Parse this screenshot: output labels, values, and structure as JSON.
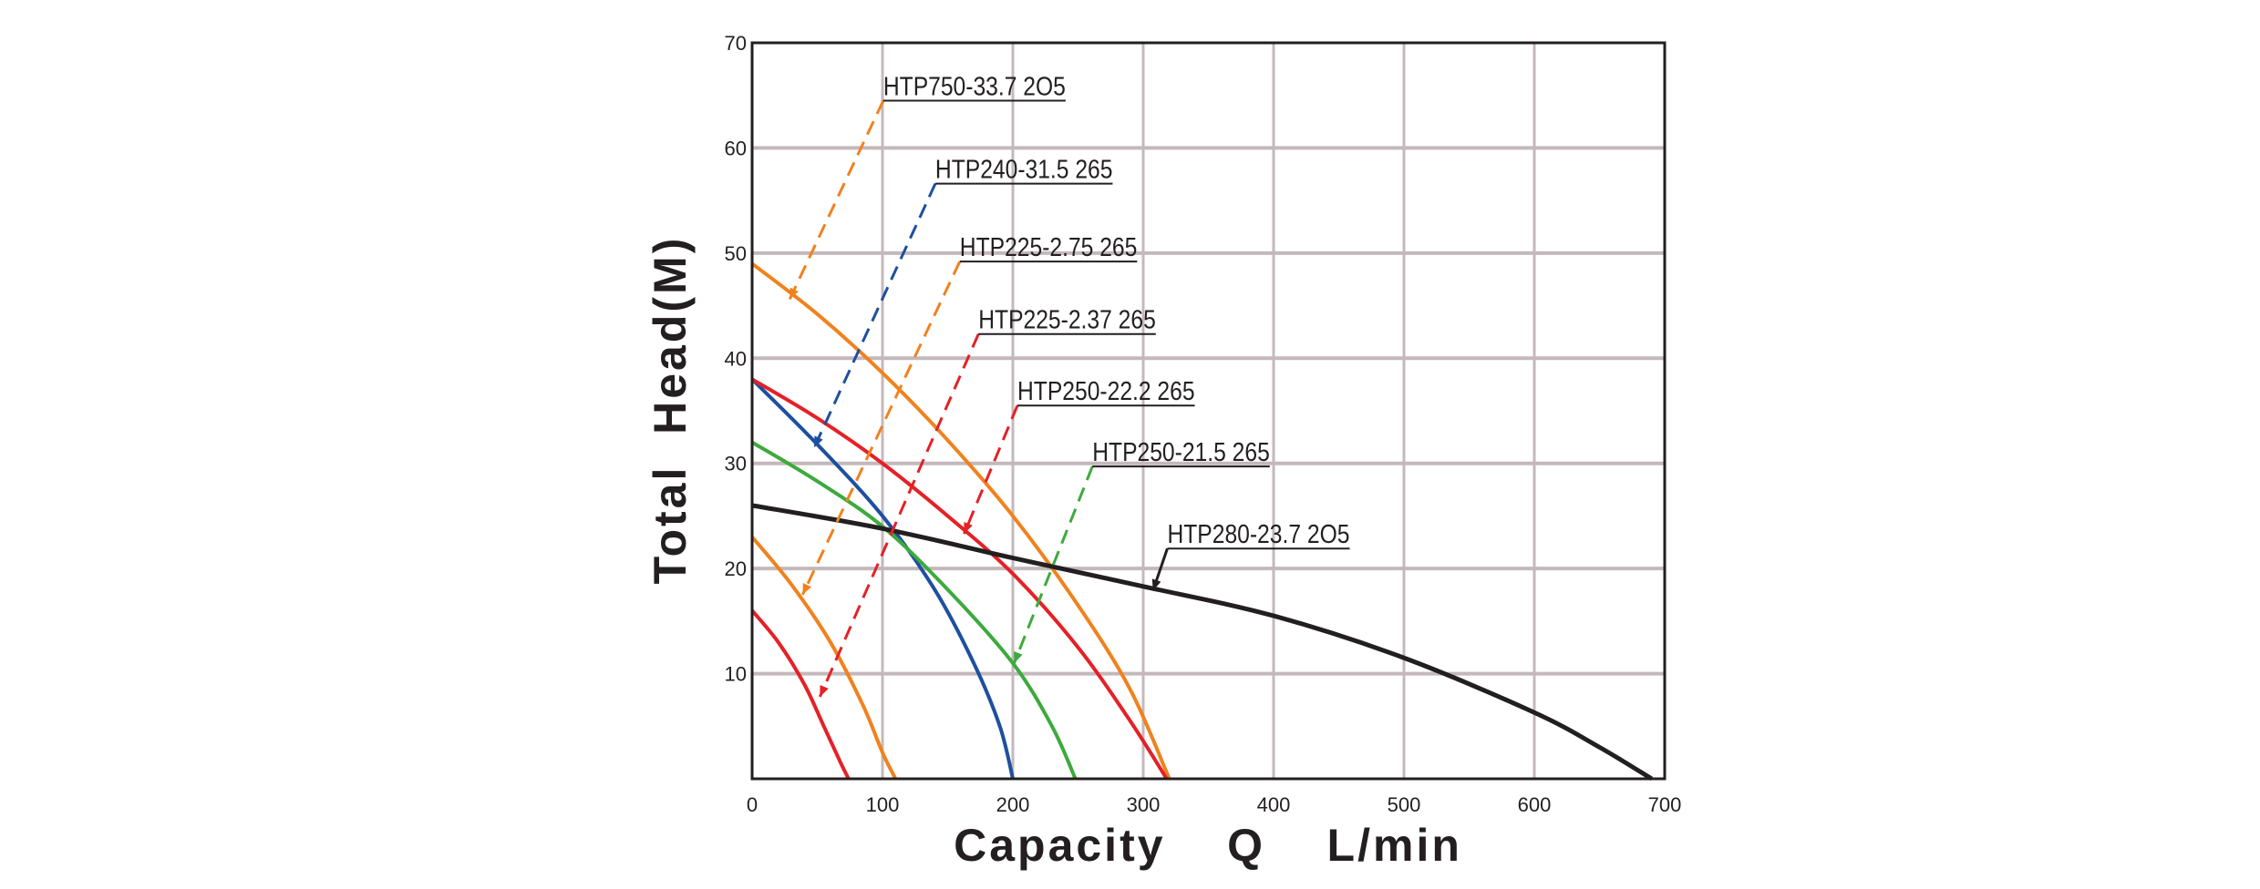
{
  "chart_data": {
    "type": "line",
    "title": "",
    "xlabel": "Capacity    Q    L/min",
    "ylabel": "Total  Head(M)",
    "xlim": [
      0,
      700
    ],
    "ylim": [
      0,
      70
    ],
    "x_ticks": [
      0,
      100,
      200,
      300,
      400,
      500,
      600,
      700
    ],
    "y_ticks": [
      10,
      20,
      30,
      40,
      50,
      60,
      70
    ],
    "grid": true,
    "grid_color": "#c4b8bb",
    "series": [
      {
        "name": "HTP750-33.7 2O5",
        "color": "#f0821e",
        "points": [
          [
            0,
            49
          ],
          [
            50,
            44.2
          ],
          [
            100,
            38.6
          ],
          [
            150,
            32.2
          ],
          [
            200,
            25
          ],
          [
            250,
            16.5
          ],
          [
            290,
            8.5
          ],
          [
            320,
            0
          ]
        ],
        "label_at": [
          100.6,
          64.5
        ],
        "arrow_to": [
          28.8,
          45.6
        ],
        "dashed": true
      },
      {
        "name": "HTP240-31.5 265",
        "color": "#1e4fa0",
        "points": [
          [
            0,
            38
          ],
          [
            50,
            31.8
          ],
          [
            100,
            25
          ],
          [
            140,
            18
          ],
          [
            170,
            11
          ],
          [
            190,
            5
          ],
          [
            200,
            0
          ]
        ],
        "label_at": [
          140.5,
          56.6
        ],
        "arrow_to": [
          47.6,
          31.5
        ],
        "dashed": true
      },
      {
        "name": "HTP225-2.75 265",
        "color": "#f0821e",
        "points": [
          [
            0,
            23
          ],
          [
            30,
            18.5
          ],
          [
            60,
            13
          ],
          [
            85,
            7
          ],
          [
            100,
            2.5
          ],
          [
            110,
            0
          ]
        ],
        "label_at": [
          159.3,
          49.2
        ],
        "arrow_to": [
          38.7,
          17.5
        ],
        "dashed": true
      },
      {
        "name": "HTP225-2.37 265",
        "color": "#e42127",
        "points": [
          [
            0,
            16
          ],
          [
            20,
            13
          ],
          [
            40,
            9
          ],
          [
            55,
            5
          ],
          [
            68,
            1.5
          ],
          [
            74,
            0
          ]
        ],
        "label_at": [
          173.6,
          42.3
        ],
        "arrow_to": [
          52,
          7.8
        ],
        "dashed": true
      },
      {
        "name": "HTP250-22.2 265",
        "color": "#e42127",
        "points": [
          [
            0,
            38
          ],
          [
            50,
            34.3
          ],
          [
            100,
            30
          ],
          [
            150,
            25
          ],
          [
            200,
            19.5
          ],
          [
            250,
            12.5
          ],
          [
            290,
            5.5
          ],
          [
            318,
            0
          ]
        ],
        "label_at": [
          203.5,
          35.5
        ],
        "arrow_to": [
          162.6,
          23.3
        ],
        "dashed": true
      },
      {
        "name": "HTP250-21.5 265",
        "color": "#3daa3d",
        "points": [
          [
            0,
            32
          ],
          [
            50,
            28.3
          ],
          [
            100,
            24
          ],
          [
            150,
            18
          ],
          [
            200,
            11
          ],
          [
            230,
            5
          ],
          [
            248,
            0
          ]
        ],
        "label_at": [
          261,
          29.7
        ],
        "arrow_to": [
          201,
          11
        ],
        "dashed": true
      },
      {
        "name": "HTP280-23.7 2O5",
        "color": "#231f20",
        "points": [
          [
            0,
            26
          ],
          [
            100,
            23.8
          ],
          [
            200,
            21
          ],
          [
            300,
            18.3
          ],
          [
            400,
            15.5
          ],
          [
            500,
            11.5
          ],
          [
            600,
            6.3
          ],
          [
            650,
            3
          ],
          [
            690,
            0
          ]
        ],
        "label_at": [
          318.5,
          21.9
        ],
        "arrow_to": [
          307.5,
          17.9
        ],
        "dashed": false
      }
    ]
  }
}
